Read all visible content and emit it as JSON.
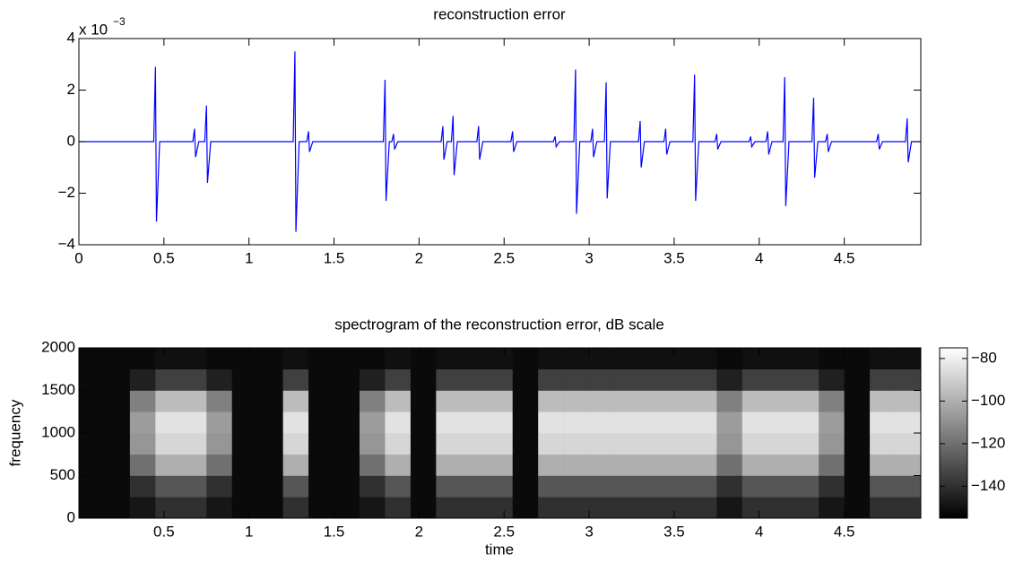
{
  "chart_data": [
    {
      "type": "line",
      "title": "reconstruction error",
      "y_multiplier": "x 10",
      "y_multiplier_exponent": "−3",
      "color": "#0000ff",
      "x": [
        0,
        0.44,
        0.45,
        0.456,
        0.475,
        0.67,
        0.68,
        0.686,
        0.705,
        0.74,
        0.75,
        0.756,
        0.775,
        1.26,
        1.27,
        1.276,
        1.295,
        1.34,
        1.35,
        1.356,
        1.375,
        1.79,
        1.8,
        1.806,
        1.825,
        1.84,
        1.85,
        1.856,
        1.875,
        2.13,
        2.14,
        2.146,
        2.165,
        2.19,
        2.2,
        2.206,
        2.225,
        2.34,
        2.35,
        2.356,
        2.375,
        2.54,
        2.55,
        2.556,
        2.575,
        2.79,
        2.8,
        2.806,
        2.825,
        2.91,
        2.92,
        2.926,
        2.945,
        3.01,
        3.02,
        3.026,
        3.045,
        3.09,
        3.1,
        3.106,
        3.125,
        3.29,
        3.3,
        3.306,
        3.325,
        3.44,
        3.45,
        3.456,
        3.475,
        3.61,
        3.62,
        3.626,
        3.645,
        3.74,
        3.75,
        3.756,
        3.775,
        3.94,
        3.95,
        3.956,
        3.975,
        4.04,
        4.05,
        4.056,
        4.075,
        4.14,
        4.15,
        4.156,
        4.175,
        4.31,
        4.32,
        4.326,
        4.345,
        4.39,
        4.4,
        4.406,
        4.425,
        4.69,
        4.7,
        4.706,
        4.725,
        4.86,
        4.87,
        4.876,
        4.895,
        4.95
      ],
      "values": [
        0,
        0,
        2.9,
        -3.1,
        0,
        0,
        0.5,
        -0.6,
        0,
        0,
        1.4,
        -1.6,
        0,
        0,
        3.5,
        -3.5,
        0,
        0,
        0.4,
        -0.4,
        0,
        0,
        2.4,
        -2.3,
        0,
        0,
        0.3,
        -0.3,
        0,
        0,
        0.6,
        -0.7,
        0,
        0,
        1.0,
        -1.3,
        0,
        0,
        0.6,
        -0.7,
        0,
        0,
        0.4,
        -0.4,
        0,
        0,
        0.2,
        -0.2,
        0,
        0,
        2.8,
        -2.8,
        0,
        0,
        0.5,
        -0.6,
        0,
        0,
        2.3,
        -2.2,
        0,
        0,
        0.8,
        -1.0,
        0,
        0,
        0.5,
        -0.5,
        0,
        0,
        2.6,
        -2.3,
        0,
        0,
        0.3,
        -0.3,
        0,
        0,
        0.2,
        -0.2,
        0,
        0,
        0.4,
        -0.5,
        0,
        0,
        2.5,
        -2.5,
        0,
        0,
        1.7,
        -1.4,
        0,
        0,
        0.3,
        -0.4,
        0,
        0,
        0.3,
        -0.3,
        0,
        0,
        0.9,
        -0.8,
        0,
        0
      ],
      "xlim": [
        0,
        4.95
      ],
      "xticks": [
        0,
        0.5,
        1,
        1.5,
        2,
        2.5,
        3,
        3.5,
        4,
        4.5
      ],
      "ylim": [
        -4,
        4
      ],
      "yticks": [
        {
          "value": -4,
          "label": "−4"
        },
        {
          "value": -2,
          "label": "−2"
        },
        0,
        2,
        4
      ]
    },
    {
      "type": "heatmap",
      "title": "spectrogram of the reconstruction error, dB scale",
      "x_label": "time",
      "y_label": "frequency",
      "x_edges": [
        0,
        0.15,
        0.3,
        0.45,
        0.6,
        0.75,
        0.9,
        1.05,
        1.2,
        1.35,
        1.5,
        1.65,
        1.8,
        1.95,
        2.1,
        2.25,
        2.4,
        2.55,
        2.7,
        2.85,
        3.0,
        3.15,
        3.3,
        3.45,
        3.6,
        3.75,
        3.9,
        4.05,
        4.2,
        4.35,
        4.5,
        4.65,
        4.8,
        4.95
      ],
      "y_edges": [
        0,
        250,
        500,
        750,
        1000,
        1250,
        1500,
        1750,
        2000
      ],
      "z": [
        [
          -152,
          -152,
          -148,
          -140,
          -140,
          -148,
          -152,
          -152,
          -140,
          -152,
          -152,
          -148,
          -140,
          -152,
          -140,
          -140,
          -140,
          -152,
          -140,
          -140,
          -140,
          -140,
          -140,
          -140,
          -140,
          -148,
          -140,
          -140,
          -140,
          -148,
          -152,
          -140,
          -140
        ],
        [
          -152,
          -152,
          -140,
          -128,
          -128,
          -140,
          -152,
          -152,
          -128,
          -152,
          -152,
          -140,
          -128,
          -152,
          -128,
          -128,
          -128,
          -152,
          -128,
          -128,
          -128,
          -128,
          -128,
          -128,
          -128,
          -140,
          -128,
          -128,
          -128,
          -140,
          -152,
          -128,
          -128
        ],
        [
          -152,
          -152,
          -120,
          -100,
          -100,
          -120,
          -152,
          -152,
          -100,
          -152,
          -152,
          -120,
          -100,
          -152,
          -100,
          -100,
          -100,
          -152,
          -100,
          -100,
          -100,
          -100,
          -100,
          -100,
          -100,
          -120,
          -100,
          -100,
          -100,
          -120,
          -152,
          -100,
          -100
        ],
        [
          -152,
          -152,
          -108,
          -88,
          -88,
          -108,
          -152,
          -152,
          -88,
          -152,
          -152,
          -108,
          -88,
          -152,
          -88,
          -88,
          -88,
          -152,
          -88,
          -88,
          -88,
          -88,
          -88,
          -88,
          -88,
          -108,
          -88,
          -88,
          -88,
          -108,
          -152,
          -88,
          -88
        ],
        [
          -152,
          -152,
          -106,
          -84,
          -84,
          -106,
          -152,
          -152,
          -84,
          -152,
          -152,
          -106,
          -84,
          -152,
          -84,
          -84,
          -84,
          -152,
          -84,
          -84,
          -84,
          -84,
          -84,
          -84,
          -84,
          -106,
          -84,
          -84,
          -84,
          -106,
          -152,
          -84,
          -84
        ],
        [
          -152,
          -152,
          -115,
          -96,
          -96,
          -115,
          -152,
          -152,
          -96,
          -152,
          -152,
          -115,
          -96,
          -152,
          -96,
          -96,
          -96,
          -152,
          -96,
          -96,
          -96,
          -96,
          -96,
          -96,
          -96,
          -115,
          -96,
          -96,
          -96,
          -115,
          -152,
          -96,
          -96
        ],
        [
          -152,
          -152,
          -145,
          -135,
          -135,
          -145,
          -152,
          -152,
          -135,
          -152,
          -152,
          -145,
          -135,
          -152,
          -135,
          -135,
          -135,
          -152,
          -135,
          -135,
          -135,
          -135,
          -135,
          -135,
          -135,
          -145,
          -135,
          -135,
          -135,
          -145,
          -152,
          -135,
          -135
        ],
        [
          -152,
          -152,
          -152,
          -150,
          -150,
          -152,
          -152,
          -152,
          -150,
          -152,
          -152,
          -152,
          -150,
          -152,
          -150,
          -150,
          -150,
          -152,
          -150,
          -150,
          -150,
          -150,
          -150,
          -150,
          -150,
          -152,
          -150,
          -150,
          -150,
          -152,
          -152,
          -150,
          -150
        ]
      ],
      "xlim": [
        0,
        4.95
      ],
      "xticks": [
        0.5,
        1,
        1.5,
        2,
        2.5,
        3,
        3.5,
        4,
        4.5
      ],
      "ylim": [
        0,
        2000
      ],
      "yticks": [
        0,
        500,
        1000,
        1500,
        2000
      ],
      "clim": [
        -155,
        -75
      ],
      "cticks": [
        {
          "value": -80,
          "label": "−80"
        },
        {
          "value": -100,
          "label": "−100"
        },
        {
          "value": -120,
          "label": "−120"
        },
        {
          "value": -140,
          "label": "−140"
        }
      ]
    }
  ]
}
